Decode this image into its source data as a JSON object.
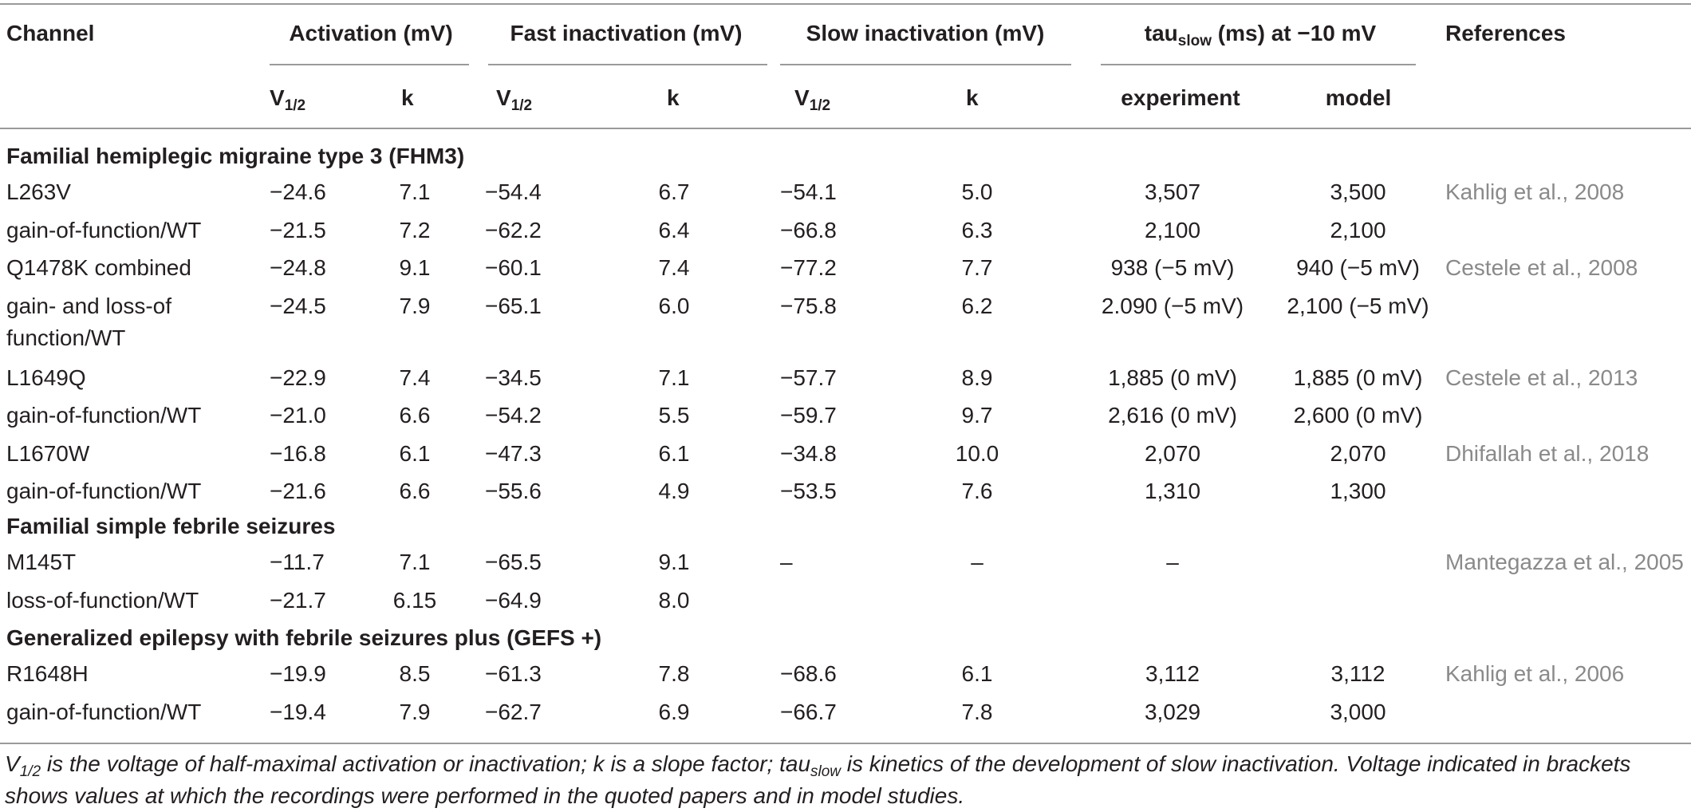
{
  "header": {
    "channel": "Channel",
    "activation": "Activation (mV)",
    "fast_inactivation": "Fast inactivation (mV)",
    "slow_inactivation": "Slow inactivation (mV)",
    "tau_prefix": "tau",
    "tau_sub": "slow",
    "tau_suffix": " (ms) at −10 mV",
    "references": "References",
    "v_half_main": "V",
    "v_half_sub": "1/2",
    "k": "k",
    "experiment": "experiment",
    "model": "model"
  },
  "sections": [
    {
      "title": "Familial hemiplegic migraine type 3 (FHM3)",
      "rows": [
        {
          "channel": "L263V",
          "act_v": "−24.6",
          "act_k": "7.1",
          "fast_v": "−54.4",
          "fast_k": "6.7",
          "slow_v": "−54.1",
          "slow_k": "5.0",
          "tau_exp": "3,507",
          "tau_model": "3,500",
          "ref": "Kahlig et al., 2008"
        },
        {
          "channel": "gain-of-function/WT",
          "act_v": "−21.5",
          "act_k": "7.2",
          "fast_v": "−62.2",
          "fast_k": "6.4",
          "slow_v": "−66.8",
          "slow_k": "6.3",
          "tau_exp": "2,100",
          "tau_model": "2,100",
          "ref": ""
        },
        {
          "channel": "Q1478K combined",
          "act_v": "−24.8",
          "act_k": "9.1",
          "fast_v": "−60.1",
          "fast_k": "7.4",
          "slow_v": "−77.2",
          "slow_k": "7.7",
          "tau_exp": "938 (−5 mV)",
          "tau_model": "940 (−5 mV)",
          "ref": "Cestele et al., 2008"
        },
        {
          "channel": "gain- and loss-of",
          "channel2": "function/WT",
          "act_v": "−24.5",
          "act_k": "7.9",
          "fast_v": "−65.1",
          "fast_k": "6.0",
          "slow_v": "−75.8",
          "slow_k": "6.2",
          "tau_exp": "2.090 (−5 mV)",
          "tau_model": "2,100 (−5 mV)",
          "ref": ""
        },
        {
          "channel": "L1649Q",
          "act_v": "−22.9",
          "act_k": "7.4",
          "fast_v": "−34.5",
          "fast_k": "7.1",
          "slow_v": "−57.7",
          "slow_k": "8.9",
          "tau_exp": "1,885 (0 mV)",
          "tau_model": "1,885 (0 mV)",
          "ref": "Cestele et al., 2013"
        },
        {
          "channel": "gain-of-function/WT",
          "act_v": "−21.0",
          "act_k": "6.6",
          "fast_v": "−54.2",
          "fast_k": "5.5",
          "slow_v": "−59.7",
          "slow_k": "9.7",
          "tau_exp": "2,616 (0 mV)",
          "tau_model": "2,600 (0 mV)",
          "ref": ""
        },
        {
          "channel": "L1670W",
          "act_v": "−16.8",
          "act_k": "6.1",
          "fast_v": "−47.3",
          "fast_k": "6.1",
          "slow_v": "−34.8",
          "slow_k": "10.0",
          "tau_exp": "2,070",
          "tau_model": "2,070",
          "ref": "Dhifallah et al., 2018"
        },
        {
          "channel": "gain-of-function/WT",
          "act_v": "−21.6",
          "act_k": "6.6",
          "fast_v": "−55.6",
          "fast_k": "4.9",
          "slow_v": "−53.5",
          "slow_k": "7.6",
          "tau_exp": "1,310",
          "tau_model": "1,300",
          "ref": ""
        }
      ]
    },
    {
      "title": "Familial simple febrile seizures",
      "rows": [
        {
          "channel": "M145T",
          "act_v": "−11.7",
          "act_k": "7.1",
          "fast_v": "−65.5",
          "fast_k": "9.1",
          "slow_v": "–",
          "slow_k": "–",
          "tau_exp": "–",
          "tau_model": "",
          "ref": "Mantegazza et al., 2005"
        },
        {
          "channel": "loss-of-function/WT",
          "act_v": "−21.7",
          "act_k": "6.15",
          "fast_v": "−64.9",
          "fast_k": "8.0",
          "slow_v": "",
          "slow_k": "",
          "tau_exp": "",
          "tau_model": "",
          "ref": ""
        }
      ]
    },
    {
      "title": "Generalized epilepsy with febrile seizures plus (GEFS +)",
      "rows": [
        {
          "channel": "R1648H",
          "act_v": "−19.9",
          "act_k": "8.5",
          "fast_v": "−61.3",
          "fast_k": "7.8",
          "slow_v": "−68.6",
          "slow_k": "6.1",
          "tau_exp": "3,112",
          "tau_model": "3,112",
          "ref": "Kahlig et al., 2006"
        },
        {
          "channel": "gain-of-function/WT",
          "act_v": "−19.4",
          "act_k": "7.9",
          "fast_v": "−62.7",
          "fast_k": "6.9",
          "slow_v": "−66.7",
          "slow_k": "7.8",
          "tau_exp": "3,029",
          "tau_model": "3,000",
          "ref": ""
        }
      ]
    }
  ],
  "footnote": {
    "v_main": "V",
    "v_sub": "1/2",
    "part1": " is the voltage of half-maximal activation or inactivation; k is a slope factor; tau",
    "tau_sub": "slow",
    "part2": " is kinetics of the development of slow inactivation. Voltage indicated in brackets shows values at which the recordings were performed in the quoted papers and in model studies."
  }
}
